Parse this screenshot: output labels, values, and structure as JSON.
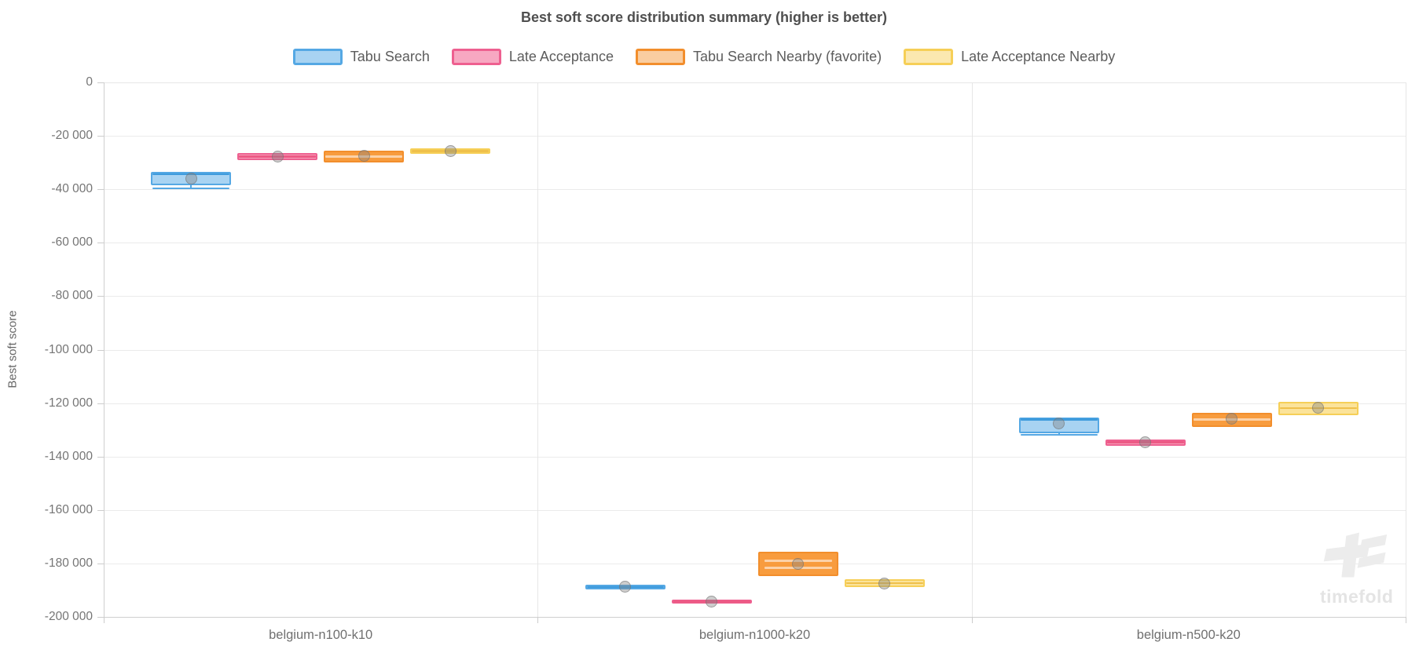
{
  "watermark": {
    "text": "timefold"
  },
  "chart_data": {
    "type": "boxplot",
    "title": "Best soft score distribution summary (higher is better)",
    "ylabel": "Best soft score",
    "xlabel": "",
    "ylim": [
      -200000,
      0
    ],
    "ytick_step": 20000,
    "ytick_labels": [
      "0",
      "-20 000",
      "-40 000",
      "-60 000",
      "-80 000",
      "-100 000",
      "-120 000",
      "-140 000",
      "-160 000",
      "-180 000",
      "-200 000"
    ],
    "grid": true,
    "legend_position": "top",
    "categories": [
      "belgium-n100-k10",
      "belgium-n1000-k20",
      "belgium-n500-k20"
    ],
    "series": [
      {
        "name": "Tabu Search",
        "fill": "#A8D3F2",
        "border": "#55A8E4",
        "median_color": "#3E9BDC",
        "legend_fill": "#A8D3F2",
        "boxes": [
          {
            "min": -39700,
            "q1": -38500,
            "median": -34300,
            "q3": -33500,
            "max": -33500,
            "mean": -35900
          },
          {
            "min": -189700,
            "q1": -189700,
            "median": -188800,
            "q3": -187900,
            "max": -187900,
            "mean": -188800
          },
          {
            "min": -131900,
            "q1": -131200,
            "median": -126200,
            "q3": -125300,
            "max": -125300,
            "mean": -127600
          }
        ]
      },
      {
        "name": "Late Acceptance",
        "fill": "#F79FB9",
        "border": "#EE6090",
        "median_color": "#EC5A85",
        "legend_fill": "#F7A8C2",
        "boxes": [
          {
            "min": -29100,
            "q1": -29100,
            "median": -27800,
            "q3": -26500,
            "max": -26500,
            "mean": -27900
          },
          {
            "min": -195000,
            "q1": -195000,
            "median": -194300,
            "q3": -193500,
            "max": -193500,
            "mean": -194400
          },
          {
            "min": -135900,
            "q1": -135900,
            "median": -134700,
            "q3": -133500,
            "max": -133500,
            "mean": -134700
          }
        ]
      },
      {
        "name": "Tabu Search Nearby (favorite)",
        "fill": "#F89C3E",
        "border": "#F28E2C",
        "median_color": "rgba(255,255,255,0.55)",
        "legend_fill": "#FACDA0",
        "boxes": [
          {
            "min": -30000,
            "q1": -30000,
            "median": -27700,
            "q3": -25600,
            "max": -25600,
            "mean": -27600
          },
          {
            "min": -184700,
            "q1": -184700,
            "median": -180200,
            "q3": -175600,
            "max": -175600,
            "mean": -180300,
            "inner_lines": [
              -178900,
              -181600
            ]
          },
          {
            "min": -128800,
            "q1": -128800,
            "median": -126100,
            "q3": -123500,
            "max": -123500,
            "mean": -125900
          }
        ]
      },
      {
        "name": "Late Acceptance Nearby",
        "fill": "#FBE39A",
        "border": "#F6CF57",
        "median_color": "#EFC04B",
        "legend_fill": "#FBE8B0",
        "boxes": [
          {
            "min": -26800,
            "q1": -26800,
            "median": -25700,
            "q3": -24700,
            "max": -24700,
            "mean": -25600
          },
          {
            "min": -188800,
            "q1": -188800,
            "median": -187300,
            "q3": -185900,
            "max": -185900,
            "mean": -187600
          },
          {
            "min": -124400,
            "q1": -124400,
            "median": -121900,
            "q3": -119400,
            "max": -119400,
            "mean": -121800
          }
        ]
      }
    ]
  }
}
